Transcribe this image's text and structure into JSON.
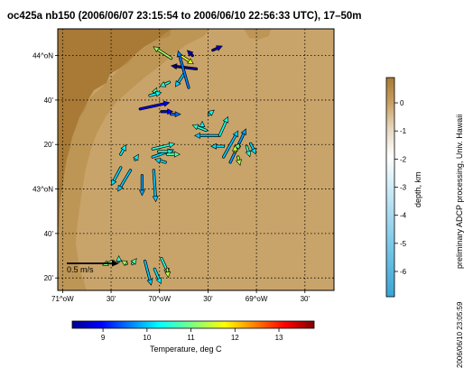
{
  "title": "oc425a nb150 (2006/06/07 23:15:54 to 2006/06/10 22:56:33 UTC), 17–50m",
  "map": {
    "lon_range": [
      -71.05,
      -68.2
    ],
    "lat_range": [
      43.12,
      44.1
    ],
    "lat_ticks": [
      "44^oN",
      "40'",
      "20'",
      "43^oN",
      "40'",
      "20'"
    ],
    "lon_ticks": [
      "71^oW",
      "30'",
      "70^oW",
      "30'",
      "69^oW",
      "30'"
    ],
    "land_color": "#a87a35",
    "water_color": "#c9a46a",
    "scale_arrow_label": "0.5 m/s",
    "scale_arrow_speed_ms": 0.5,
    "vectors": [
      {
        "lon": -69.88,
        "lat": 43.99,
        "u": -0.17,
        "v": 0.11,
        "temp": 11.2
      },
      {
        "lon": -69.78,
        "lat": 44.0,
        "u": 0.12,
        "v": -0.08,
        "temp": 11.6
      },
      {
        "lon": -69.66,
        "lat": 44.0,
        "u": -0.05,
        "v": 0.05,
        "temp": 8.6
      },
      {
        "lon": -69.45,
        "lat": 44.02,
        "u": 0.09,
        "v": 0.04,
        "temp": 8.5
      },
      {
        "lon": -69.62,
        "lat": 43.95,
        "u": -0.24,
        "v": 0.03,
        "temp": 8.3
      },
      {
        "lon": -69.75,
        "lat": 43.93,
        "u": -0.08,
        "v": -0.12,
        "temp": 10.0
      },
      {
        "lon": -69.7,
        "lat": 43.88,
        "u": -0.1,
        "v": 0.35,
        "temp": 9.6
      },
      {
        "lon": -69.9,
        "lat": 43.9,
        "u": -0.09,
        "v": -0.04,
        "temp": 10.5
      },
      {
        "lon": -70.05,
        "lat": 43.86,
        "u": 0.02,
        "v": 0.05,
        "temp": 10.8
      },
      {
        "lon": -70.1,
        "lat": 43.85,
        "u": 0.11,
        "v": 0.03,
        "temp": 10.3
      },
      {
        "lon": -70.2,
        "lat": 43.8,
        "u": 0.28,
        "v": 0.06,
        "temp": 8.9
      },
      {
        "lon": -69.98,
        "lat": 43.79,
        "u": 0.11,
        "v": 0.0,
        "temp": 8.9
      },
      {
        "lon": -69.88,
        "lat": 43.78,
        "u": 0.09,
        "v": 0.0,
        "temp": 9.5
      },
      {
        "lon": -69.49,
        "lat": 43.78,
        "u": 0.05,
        "v": 0.04,
        "temp": 10.3
      },
      {
        "lon": -69.38,
        "lat": 43.7,
        "u": 0.08,
        "v": 0.18,
        "temp": 10.4
      },
      {
        "lon": -69.34,
        "lat": 43.62,
        "u": 0.14,
        "v": 0.25,
        "temp": 10.0
      },
      {
        "lon": -69.27,
        "lat": 43.6,
        "u": 0.15,
        "v": 0.32,
        "temp": 9.8
      },
      {
        "lon": -69.56,
        "lat": 43.73,
        "u": 0.0,
        "v": 0.06,
        "temp": 10.2
      },
      {
        "lon": -69.52,
        "lat": 43.72,
        "u": -0.13,
        "v": 0.05,
        "temp": 10.5
      },
      {
        "lon": -69.4,
        "lat": 43.7,
        "u": -0.22,
        "v": 0.0,
        "temp": 10.0
      },
      {
        "lon": -69.34,
        "lat": 43.66,
        "u": -0.12,
        "v": 0.0,
        "temp": 10.1
      },
      {
        "lon": -69.2,
        "lat": 43.66,
        "u": -0.03,
        "v": 0.0,
        "temp": 10.9
      },
      {
        "lon": -69.19,
        "lat": 43.62,
        "u": 0.02,
        "v": -0.08,
        "temp": 11.3
      },
      {
        "lon": -69.22,
        "lat": 43.64,
        "u": 0.0,
        "v": 0.06,
        "temp": 11.5
      },
      {
        "lon": -69.1,
        "lat": 43.66,
        "u": 0.03,
        "v": -0.1,
        "temp": 10.6
      },
      {
        "lon": -69.06,
        "lat": 43.67,
        "u": 0.05,
        "v": -0.1,
        "temp": 10.1
      },
      {
        "lon": -70.4,
        "lat": 43.63,
        "u": 0.05,
        "v": 0.09,
        "temp": 10.2
      },
      {
        "lon": -70.4,
        "lat": 43.58,
        "u": -0.09,
        "v": -0.17,
        "temp": 10.1
      },
      {
        "lon": -70.25,
        "lat": 43.61,
        "u": 0.03,
        "v": 0.05,
        "temp": 10.2
      },
      {
        "lon": -70.07,
        "lat": 43.62,
        "u": 0.2,
        "v": 0.07,
        "temp": 10.1
      },
      {
        "lon": -70.07,
        "lat": 43.65,
        "u": 0.21,
        "v": 0.05,
        "temp": 10.5
      },
      {
        "lon": -70.01,
        "lat": 43.64,
        "u": 0.14,
        "v": 0.0,
        "temp": 10.4
      },
      {
        "lon": -69.94,
        "lat": 43.6,
        "u": -0.1,
        "v": 0.03,
        "temp": 10.1
      },
      {
        "lon": -69.92,
        "lat": 43.63,
        "u": 0.12,
        "v": 0.0,
        "temp": 10.8
      },
      {
        "lon": -70.3,
        "lat": 43.57,
        "u": -0.12,
        "v": -0.2,
        "temp": 10.0
      },
      {
        "lon": -70.18,
        "lat": 43.55,
        "u": 0.0,
        "v": -0.19,
        "temp": 9.8
      },
      {
        "lon": -70.06,
        "lat": 43.57,
        "u": 0.02,
        "v": -0.3,
        "temp": 10.0
      },
      {
        "lon": -70.48,
        "lat": 43.23,
        "u": -0.1,
        "v": -0.04,
        "temp": 11.1
      },
      {
        "lon": -70.42,
        "lat": 43.23,
        "u": 0.0,
        "v": 0.05,
        "temp": 10.6
      },
      {
        "lon": -70.34,
        "lat": 43.22,
        "u": -0.05,
        "v": 0.03,
        "temp": 11.2
      },
      {
        "lon": -70.28,
        "lat": 43.22,
        "u": 0.04,
        "v": 0.05,
        "temp": 10.8
      },
      {
        "lon": -70.15,
        "lat": 43.23,
        "u": 0.06,
        "v": -0.23,
        "temp": 10.0
      },
      {
        "lon": -70.05,
        "lat": 43.2,
        "u": 0.06,
        "v": -0.14,
        "temp": 10.2
      },
      {
        "lon": -69.98,
        "lat": 43.24,
        "u": 0.07,
        "v": -0.15,
        "temp": 10.5
      },
      {
        "lon": -69.92,
        "lat": 43.2,
        "u": 0.01,
        "v": -0.08,
        "temp": 11.4
      }
    ]
  },
  "depth_colorbar": {
    "label": "depth, km",
    "ticks": [
      "0",
      "-1",
      "-2",
      "-3",
      "-4",
      "-5",
      "-6"
    ],
    "range": [
      -6.9,
      0.9
    ]
  },
  "temperature_colorbar": {
    "label": "Temperature, deg C",
    "ticks": [
      "9",
      "10",
      "11",
      "12",
      "13"
    ],
    "range": [
      8.3,
      13.8
    ]
  },
  "side_note": "preliminary ADCP processing,  Univ. Hawaii",
  "timestamp": "2006/06/10 23:05:59"
}
